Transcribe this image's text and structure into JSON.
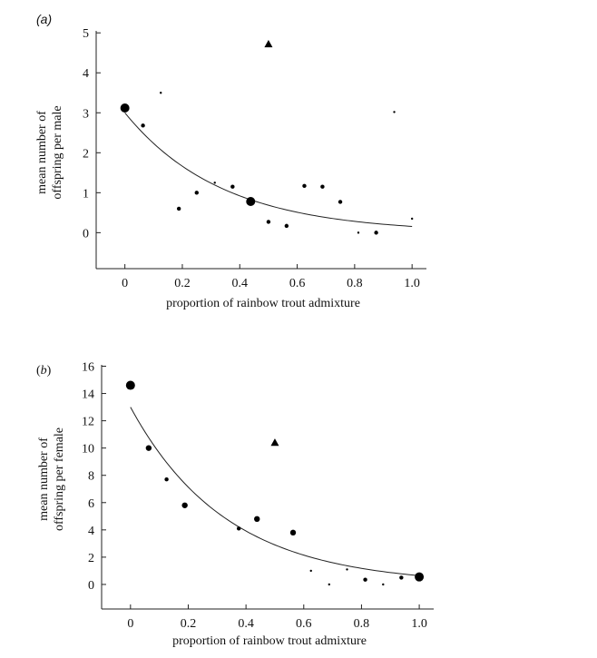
{
  "chart_data": [
    {
      "type": "scatter",
      "panel_label": "(a)",
      "title": "",
      "xlabel": "proportion of rainbow trout admixture",
      "ylabel_line1": "mean number of",
      "ylabel_line2": "offspring per male",
      "xlim": [
        -0.1,
        1.05
      ],
      "ylim": [
        -0.9,
        5.05
      ],
      "xticks": [
        0,
        0.2,
        0.4,
        0.6,
        0.8,
        1.0
      ],
      "xtick_labels": [
        "0",
        "0.2",
        "0.4",
        "0.6",
        "0.8",
        "1.0"
      ],
      "yticks": [
        0,
        1,
        2,
        3,
        4,
        5
      ],
      "ytick_labels": [
        "0",
        "1",
        "2",
        "3",
        "4",
        "5"
      ],
      "points": [
        {
          "x": 0.0,
          "y": 3.12,
          "size": "large",
          "marker": "circle"
        },
        {
          "x": 0.063,
          "y": 2.68,
          "size": "small",
          "marker": "circle"
        },
        {
          "x": 0.125,
          "y": 3.5,
          "size": "tiny",
          "marker": "circle"
        },
        {
          "x": 0.188,
          "y": 0.6,
          "size": "small",
          "marker": "circle"
        },
        {
          "x": 0.25,
          "y": 1.0,
          "size": "small",
          "marker": "circle"
        },
        {
          "x": 0.313,
          "y": 1.25,
          "size": "tiny",
          "marker": "circle"
        },
        {
          "x": 0.375,
          "y": 1.15,
          "size": "small",
          "marker": "circle"
        },
        {
          "x": 0.438,
          "y": 0.78,
          "size": "large",
          "marker": "circle"
        },
        {
          "x": 0.5,
          "y": 0.27,
          "size": "small",
          "marker": "circle"
        },
        {
          "x": 0.5,
          "y": 4.72,
          "size": "medium",
          "marker": "triangle"
        },
        {
          "x": 0.563,
          "y": 0.17,
          "size": "small",
          "marker": "circle"
        },
        {
          "x": 0.625,
          "y": 1.17,
          "size": "small",
          "marker": "circle"
        },
        {
          "x": 0.688,
          "y": 1.15,
          "size": "small",
          "marker": "circle"
        },
        {
          "x": 0.75,
          "y": 0.77,
          "size": "small",
          "marker": "circle"
        },
        {
          "x": 0.813,
          "y": 0.0,
          "size": "tiny",
          "marker": "circle"
        },
        {
          "x": 0.875,
          "y": 0.0,
          "size": "small",
          "marker": "circle"
        },
        {
          "x": 0.938,
          "y": 3.02,
          "size": "tiny",
          "marker": "circle"
        },
        {
          "x": 1.0,
          "y": 0.35,
          "size": "tiny",
          "marker": "circle"
        }
      ],
      "fit_curve": {
        "type": "exponential",
        "a": 3.0,
        "b": 2.95,
        "c": 0.0,
        "x_range": [
          0,
          1.0
        ]
      }
    },
    {
      "type": "scatter",
      "panel_label": "(b)",
      "title": "",
      "xlabel": "proportion of rainbow trout admixture",
      "ylabel_line1": "mean number of",
      "ylabel_line2": "offspring per female",
      "xlim": [
        -0.1,
        1.05
      ],
      "ylim": [
        -1.8,
        16.1
      ],
      "xticks": [
        0,
        0.2,
        0.4,
        0.6,
        0.8,
        1.0
      ],
      "xtick_labels": [
        "0",
        "0.2",
        "0.4",
        "0.6",
        "0.8",
        "1.0"
      ],
      "yticks": [
        0,
        2,
        4,
        6,
        8,
        10,
        12,
        14,
        16
      ],
      "ytick_labels": [
        "0",
        "2",
        "4",
        "6",
        "8",
        "10",
        "12",
        "14",
        "16"
      ],
      "points": [
        {
          "x": 0.0,
          "y": 14.6,
          "size": "large",
          "marker": "circle"
        },
        {
          "x": 0.063,
          "y": 10.0,
          "size": "medium",
          "marker": "circle"
        },
        {
          "x": 0.125,
          "y": 7.7,
          "size": "small",
          "marker": "circle"
        },
        {
          "x": 0.188,
          "y": 5.8,
          "size": "medium",
          "marker": "circle"
        },
        {
          "x": 0.375,
          "y": 4.1,
          "size": "small",
          "marker": "circle"
        },
        {
          "x": 0.438,
          "y": 4.8,
          "size": "medium",
          "marker": "circle"
        },
        {
          "x": 0.5,
          "y": 10.4,
          "size": "medium",
          "marker": "triangle"
        },
        {
          "x": 0.563,
          "y": 3.8,
          "size": "medium",
          "marker": "circle"
        },
        {
          "x": 0.625,
          "y": 1.0,
          "size": "tiny",
          "marker": "circle"
        },
        {
          "x": 0.688,
          "y": 0.0,
          "size": "tiny",
          "marker": "circle"
        },
        {
          "x": 0.75,
          "y": 1.1,
          "size": "tiny",
          "marker": "circle"
        },
        {
          "x": 0.813,
          "y": 0.35,
          "size": "small",
          "marker": "circle"
        },
        {
          "x": 0.875,
          "y": 0.0,
          "size": "tiny",
          "marker": "circle"
        },
        {
          "x": 0.938,
          "y": 0.5,
          "size": "small",
          "marker": "circle"
        },
        {
          "x": 1.0,
          "y": 0.55,
          "size": "large",
          "marker": "circle"
        }
      ],
      "fit_curve": {
        "type": "exponential",
        "a": 13.0,
        "b": 3.0,
        "c": 0.0,
        "x_range": [
          0,
          1.0
        ]
      }
    }
  ]
}
